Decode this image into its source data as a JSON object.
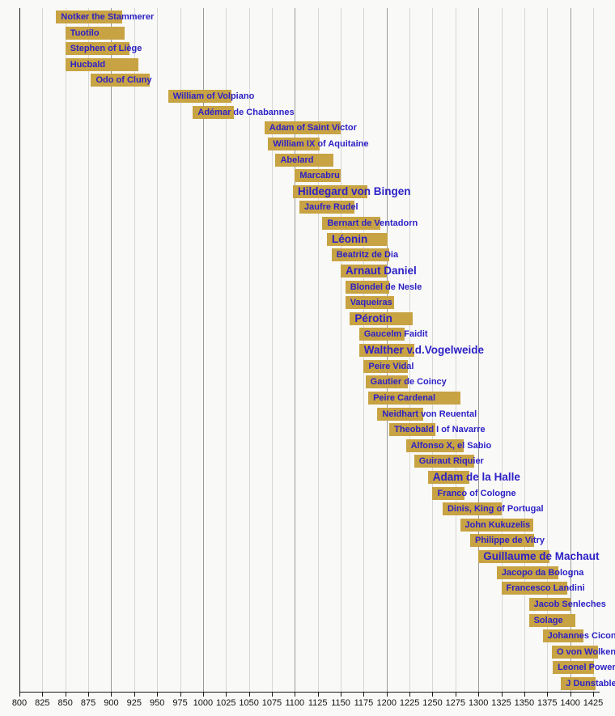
{
  "chart_data": {
    "type": "bar",
    "subtype": "horizontal-timeline-gantt",
    "description": "Lifespans of medieval composers on a year timeline",
    "xlabel": "",
    "ylabel": "",
    "grid": "vertical gridlines every 25 years, darker at century marks",
    "legend": "none",
    "colors": {
      "bar": "#c8a344",
      "label": "#2d21c6",
      "axis": "#1a1a1a",
      "gridline_minor": "#d6d6d6",
      "gridline_century": "#9a9a9a",
      "background": "#f9f9f7"
    },
    "x_axis": {
      "min": 800,
      "max": 1430,
      "tick_interval": 25,
      "tick_labels": [
        "800",
        "825",
        "850",
        "875",
        "900",
        "925",
        "950",
        "975",
        "1000",
        "1025",
        "1050",
        "1075",
        "1100",
        "1125",
        "1150",
        "1175",
        "1200",
        "1225",
        "1250",
        "1275",
        "1300",
        "1325",
        "1350",
        "1375",
        "1400",
        "1425"
      ]
    },
    "composers": [
      {
        "name": "Notker the Stammerer",
        "start": 840,
        "end": 912,
        "emphasis": false
      },
      {
        "name": "Tuotilo",
        "start": 850,
        "end": 915,
        "emphasis": false
      },
      {
        "name": "Stephen of Liège",
        "start": 850,
        "end": 920,
        "emphasis": false
      },
      {
        "name": "Hucbald",
        "start": 850,
        "end": 930,
        "emphasis": false
      },
      {
        "name": "Odo of Cluny",
        "start": 878,
        "end": 942,
        "emphasis": false
      },
      {
        "name": "William of Volpiano",
        "start": 962,
        "end": 1031,
        "emphasis": false
      },
      {
        "name": "Adémar de Chabannes",
        "start": 989,
        "end": 1034,
        "emphasis": false
      },
      {
        "name": "Adam of Saint Victor",
        "start": 1067,
        "end": 1150,
        "emphasis": false
      },
      {
        "name": "William IX of Aquitaine",
        "start": 1071,
        "end": 1127,
        "emphasis": false
      },
      {
        "name": "Abelard",
        "start": 1079,
        "end": 1142,
        "emphasis": false
      },
      {
        "name": "Marcabru",
        "start": 1100,
        "end": 1150,
        "emphasis": false
      },
      {
        "name": "Hildegard von Bingen",
        "start": 1098,
        "end": 1179,
        "emphasis": true
      },
      {
        "name": "Jaufre Rudel",
        "start": 1105,
        "end": 1165,
        "emphasis": false
      },
      {
        "name": "Bernart de Ventadorn",
        "start": 1130,
        "end": 1193,
        "emphasis": false
      },
      {
        "name": "Léonin",
        "start": 1135,
        "end": 1201,
        "emphasis": true
      },
      {
        "name": "Beatritz de Dia",
        "start": 1140,
        "end": 1203,
        "emphasis": false
      },
      {
        "name": "Arnaut Daniel",
        "start": 1150,
        "end": 1200,
        "emphasis": true
      },
      {
        "name": "Blondel de Nesle",
        "start": 1155,
        "end": 1203,
        "emphasis": false
      },
      {
        "name": "Vaqueiras",
        "start": 1155,
        "end": 1208,
        "emphasis": false
      },
      {
        "name": "Pérotin",
        "start": 1160,
        "end": 1228,
        "emphasis": true
      },
      {
        "name": "Gaucelm Faidit",
        "start": 1170,
        "end": 1220,
        "emphasis": false
      },
      {
        "name": "Walther v.d.Vogelweide",
        "start": 1170,
        "end": 1230,
        "emphasis": true
      },
      {
        "name": "Peire Vidal",
        "start": 1175,
        "end": 1223,
        "emphasis": false
      },
      {
        "name": "Gautier de Coincy",
        "start": 1177,
        "end": 1223,
        "emphasis": false
      },
      {
        "name": "Peire Cardenal",
        "start": 1180,
        "end": 1280,
        "emphasis": false
      },
      {
        "name": "Neidhart von Reuental",
        "start": 1190,
        "end": 1240,
        "emphasis": false
      },
      {
        "name": "Theobald I of Navarre",
        "start": 1203,
        "end": 1253,
        "emphasis": false
      },
      {
        "name": "Alfonso X, el Sabio",
        "start": 1221,
        "end": 1284,
        "emphasis": false
      },
      {
        "name": "Guiraut Riquier",
        "start": 1230,
        "end": 1295,
        "emphasis": false
      },
      {
        "name": "Adam de la Halle",
        "start": 1245,
        "end": 1290,
        "emphasis": true
      },
      {
        "name": "Franco of Cologne",
        "start": 1250,
        "end": 1285,
        "emphasis": false
      },
      {
        "name": "Dinis, King of Portugal",
        "start": 1261,
        "end": 1325,
        "emphasis": false
      },
      {
        "name": "John Kukuzelis",
        "start": 1280,
        "end": 1360,
        "emphasis": false
      },
      {
        "name": "Philippe de Vitry",
        "start": 1291,
        "end": 1361,
        "emphasis": false
      },
      {
        "name": "Guillaume de Machaut",
        "start": 1300,
        "end": 1377,
        "emphasis": true
      },
      {
        "name": "Jacopo da Bologna",
        "start": 1320,
        "end": 1387,
        "emphasis": false
      },
      {
        "name": "Francesco Landini",
        "start": 1325,
        "end": 1397,
        "emphasis": false
      },
      {
        "name": "Jacob Senleches",
        "start": 1355,
        "end": 1400,
        "emphasis": false
      },
      {
        "name": "Solage",
        "start": 1355,
        "end": 1406,
        "emphasis": false
      },
      {
        "name": "Johannes Ciconia",
        "start": 1370,
        "end": 1414,
        "emphasis": false
      },
      {
        "name": "O von Wolkenstein",
        "start": 1380,
        "end": 1430,
        "emphasis": false
      },
      {
        "name": "Leonel Power",
        "start": 1381,
        "end": 1426,
        "emphasis": false
      },
      {
        "name": "J Dunstable",
        "start": 1390,
        "end": 1428,
        "emphasis": false
      }
    ]
  }
}
